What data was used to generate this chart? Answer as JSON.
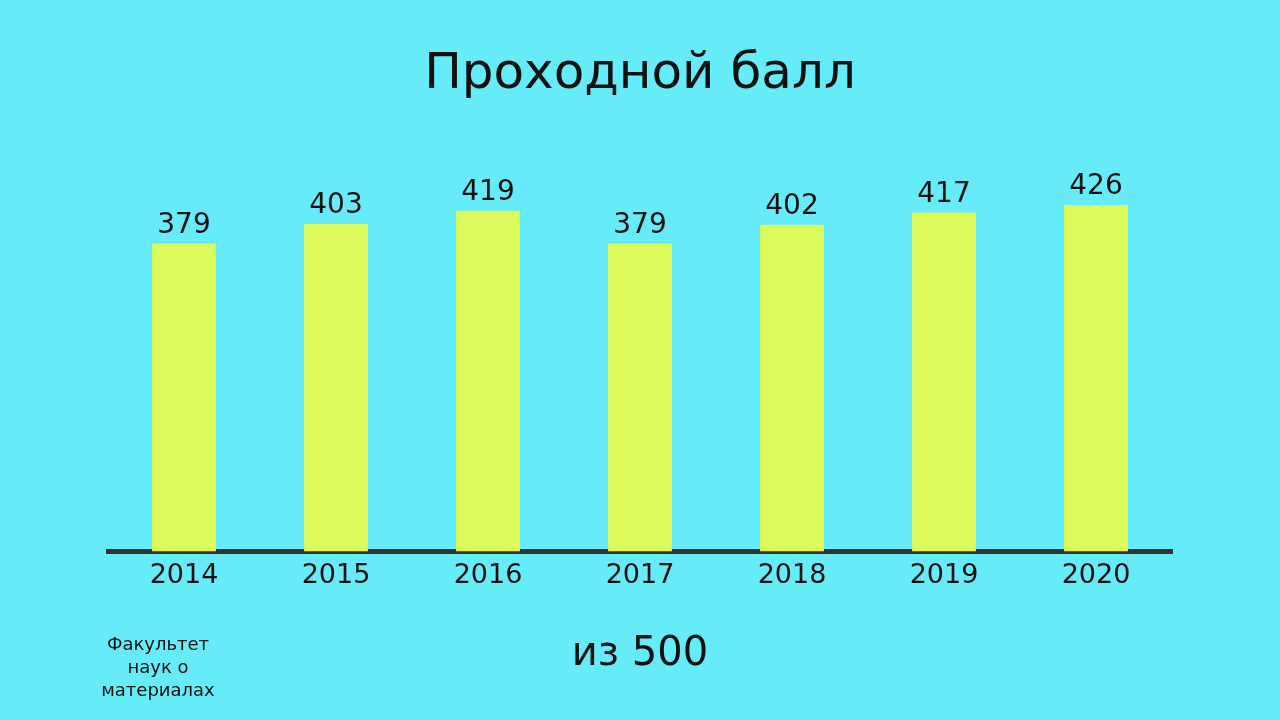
{
  "chart_data": {
    "type": "bar",
    "title": "Проходной балл",
    "categories": [
      "2014",
      "2015",
      "2016",
      "2017",
      "2018",
      "2019",
      "2020"
    ],
    "values": [
      379,
      403,
      419,
      379,
      402,
      417,
      426
    ],
    "color": "#dcfa5a",
    "data_labels": true,
    "grid": false,
    "legend": false,
    "annotations": [
      "из 500",
      "Факультет наук о материалах"
    ]
  }
}
